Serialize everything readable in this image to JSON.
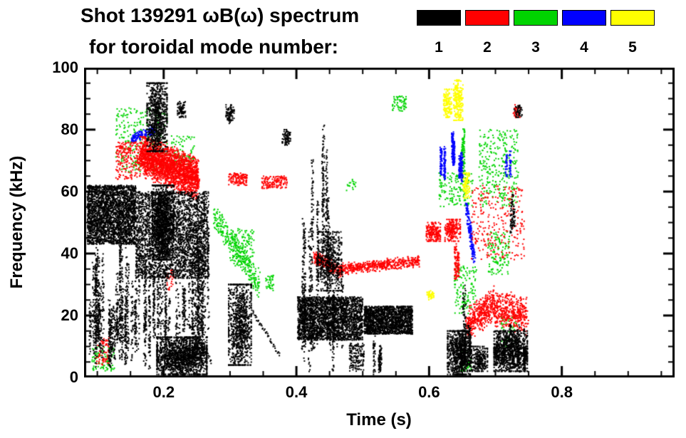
{
  "title": {
    "line1": "Shot 139291 ωB(ω) spectrum",
    "line2": "for toroidal mode number:"
  },
  "legend": {
    "items": [
      {
        "label": "1",
        "color": "#000000"
      },
      {
        "label": "2",
        "color": "#ff0000"
      },
      {
        "label": "3",
        "color": "#00d400"
      },
      {
        "label": "4",
        "color": "#0000ff"
      },
      {
        "label": "5",
        "color": "#ffff00"
      }
    ]
  },
  "chart_data": {
    "type": "scatter",
    "title": "Shot 139291 ωB(ω) spectrum for toroidal mode number",
    "xlabel": "Time (s)",
    "ylabel": "Frequency (kHz)",
    "xlim": [
      0.08,
      0.97
    ],
    "ylim": [
      0,
      100
    ],
    "xticks": [
      0.2,
      0.4,
      0.6,
      0.8
    ],
    "xtick_labels": [
      "0.2",
      "0.4",
      "0.6",
      "0.8"
    ],
    "yticks": [
      0,
      20,
      40,
      60,
      80,
      100
    ],
    "ytick_labels": [
      "0",
      "20",
      "40",
      "60",
      "80",
      "100"
    ],
    "x_minor_step": 0.05,
    "y_minor_step": 5,
    "grid": false,
    "legend_position": "top",
    "point_units": {
      "t": "seconds",
      "f": "kHz"
    },
    "series": [
      {
        "name": "n=1",
        "color": "#000000",
        "clusters": [
          {
            "kind": "rect",
            "t": [
              0.085,
              0.158
            ],
            "f": [
              43,
              62
            ],
            "n": 2600
          },
          {
            "kind": "vstreaks",
            "t": [
              0.086,
              0.158
            ],
            "f": [
              3,
              45
            ],
            "k": 30,
            "n": 1300
          },
          {
            "kind": "rect",
            "t": [
              0.158,
              0.268
            ],
            "f": [
              32,
              60
            ],
            "n": 2600
          },
          {
            "kind": "vstreaks",
            "t": [
              0.158,
              0.268
            ],
            "f": [
              2,
              58
            ],
            "k": 38,
            "n": 1700
          },
          {
            "kind": "blob",
            "t": [
              0.183,
              0.215
            ],
            "f": [
              38,
              62
            ],
            "n": 1200
          },
          {
            "kind": "blob",
            "t": [
              0.19,
              0.265
            ],
            "f": [
              1,
              13
            ],
            "n": 1500
          },
          {
            "kind": "blob",
            "t": [
              0.175,
              0.205
            ],
            "f": [
              73,
              95
            ],
            "n": 800
          },
          {
            "kind": "blob",
            "t": [
              0.221,
              0.233
            ],
            "f": [
              84,
              89
            ],
            "n": 90
          },
          {
            "kind": "blob",
            "t": [
              0.294,
              0.306
            ],
            "f": [
              82,
              88
            ],
            "n": 90
          },
          {
            "kind": "blob",
            "t": [
              0.379,
              0.391
            ],
            "f": [
              75,
              80
            ],
            "n": 80
          },
          {
            "kind": "trace",
            "t0": 0.228,
            "f0": 21,
            "t1": 0.272,
            "f1": 5,
            "n": 55
          },
          {
            "kind": "blob",
            "t": [
              0.298,
              0.332
            ],
            "f": [
              4,
              30
            ],
            "n": 950
          },
          {
            "kind": "trace",
            "t0": 0.332,
            "f0": 22,
            "t1": 0.375,
            "f1": 7,
            "n": 45
          },
          {
            "kind": "rect",
            "t": [
              0.402,
              0.5
            ],
            "f": [
              12,
              26
            ],
            "n": 2400
          },
          {
            "kind": "rect",
            "t": [
              0.502,
              0.575
            ],
            "f": [
              14,
              23
            ],
            "n": 1700
          },
          {
            "kind": "vstreaks",
            "t": [
              0.404,
              0.47
            ],
            "f": [
              0,
              52
            ],
            "k": 16,
            "n": 750
          },
          {
            "kind": "vstreaks",
            "t": [
              0.423,
              0.458
            ],
            "f": [
              30,
              82
            ],
            "k": 6,
            "n": 330
          },
          {
            "kind": "blob",
            "t": [
              0.433,
              0.468
            ],
            "f": [
              28,
              47
            ],
            "n": 520
          },
          {
            "kind": "vstreaks",
            "t": [
              0.515,
              0.528
            ],
            "f": [
              0,
              16
            ],
            "k": 3,
            "n": 130
          },
          {
            "kind": "rect",
            "t": [
              0.48,
              0.502
            ],
            "f": [
              2,
              11
            ],
            "n": 160
          },
          {
            "kind": "blob",
            "t": [
              0.628,
              0.662
            ],
            "f": [
              1,
              15
            ],
            "n": 800
          },
          {
            "kind": "vstreaks",
            "t": [
              0.646,
              0.664
            ],
            "f": [
              1,
              30
            ],
            "k": 6,
            "n": 260
          },
          {
            "kind": "blob",
            "t": [
              0.664,
              0.688
            ],
            "f": [
              2,
              10
            ],
            "n": 260
          },
          {
            "kind": "blob",
            "t": [
              0.698,
              0.748
            ],
            "f": [
              2,
              15
            ],
            "n": 950
          },
          {
            "kind": "vstreaks",
            "t": [
              0.7,
              0.745
            ],
            "f": [
              1,
              18
            ],
            "k": 9,
            "n": 320
          },
          {
            "kind": "blob",
            "t": [
              0.728,
              0.74
            ],
            "f": [
              84,
              88
            ],
            "n": 45
          },
          {
            "kind": "vstreaks",
            "t": [
              0.72,
              0.742
            ],
            "f": [
              45,
              62
            ],
            "k": 3,
            "n": 80
          }
        ]
      },
      {
        "name": "n=2",
        "color": "#ff0000",
        "clusters": [
          {
            "kind": "rect",
            "t": [
              0.098,
              0.118
            ],
            "f": [
              4,
              13
            ],
            "n": 70
          },
          {
            "kind": "rect",
            "t": [
              0.128,
              0.165
            ],
            "f": [
              64,
              76
            ],
            "n": 220
          },
          {
            "kind": "band",
            "t0": 0.165,
            "f0": 72,
            "t1": 0.252,
            "f1": 64,
            "w": 9,
            "n": 2300
          },
          {
            "kind": "rect",
            "t": [
              0.205,
              0.216
            ],
            "f": [
              28,
              35
            ],
            "n": 30
          },
          {
            "kind": "rect",
            "t": [
              0.298,
              0.326
            ],
            "f": [
              62,
              66
            ],
            "n": 130
          },
          {
            "kind": "rect",
            "t": [
              0.348,
              0.386
            ],
            "f": [
              61,
              65
            ],
            "n": 140
          },
          {
            "kind": "band",
            "t0": 0.425,
            "f0": 39,
            "t1": 0.468,
            "f1": 34,
            "w": 3,
            "n": 260
          },
          {
            "kind": "band",
            "t0": 0.468,
            "f0": 35,
            "t1": 0.585,
            "f1": 37.5,
            "w": 2.5,
            "n": 500
          },
          {
            "kind": "blob",
            "t": [
              0.596,
              0.617
            ],
            "f": [
              44,
              50
            ],
            "n": 200
          },
          {
            "kind": "blob",
            "t": [
              0.624,
              0.647
            ],
            "f": [
              44,
              51
            ],
            "n": 220
          },
          {
            "kind": "vstreaks",
            "t": [
              0.636,
              0.644
            ],
            "f": [
              28,
              50
            ],
            "k": 2,
            "n": 110
          },
          {
            "kind": "band",
            "t0": 0.657,
            "f0": 17,
            "t1": 0.7,
            "f1": 24,
            "w": 7,
            "n": 450
          },
          {
            "kind": "band",
            "t0": 0.7,
            "f0": 22,
            "t1": 0.748,
            "f1": 20,
            "w": 8,
            "n": 420
          },
          {
            "kind": "rect",
            "t": [
              0.664,
              0.744
            ],
            "f": [
              38,
              62
            ],
            "n": 260
          },
          {
            "kind": "blob",
            "t": [
              0.727,
              0.737
            ],
            "f": [
              84,
              88
            ],
            "n": 45
          }
        ]
      },
      {
        "name": "n=3",
        "color": "#00d400",
        "clusters": [
          {
            "kind": "rect",
            "t": [
              0.092,
              0.126
            ],
            "f": [
              2,
              10
            ],
            "n": 90
          },
          {
            "kind": "rect",
            "t": [
              0.128,
              0.206
            ],
            "f": [
              66,
              87
            ],
            "n": 260
          },
          {
            "kind": "rect",
            "t": [
              0.21,
              0.246
            ],
            "f": [
              68,
              78
            ],
            "n": 90
          },
          {
            "kind": "band",
            "t0": 0.276,
            "f0": 52,
            "t1": 0.345,
            "f1": 30,
            "w": 6,
            "n": 300
          },
          {
            "kind": "rect",
            "t": [
              0.3,
              0.336
            ],
            "f": [
              36,
              48
            ],
            "n": 150
          },
          {
            "kind": "rect",
            "t": [
              0.354,
              0.366
            ],
            "f": [
              28,
              33
            ],
            "n": 40
          },
          {
            "kind": "rect",
            "t": [
              0.545,
              0.566
            ],
            "f": [
              86,
              91
            ],
            "n": 60
          },
          {
            "kind": "rect",
            "t": [
              0.474,
              0.49
            ],
            "f": [
              60,
              64
            ],
            "n": 18
          },
          {
            "kind": "rect",
            "t": [
              0.615,
              0.666
            ],
            "f": [
              55,
              66
            ],
            "n": 160
          },
          {
            "kind": "vstreaks",
            "t": [
              0.65,
              0.662
            ],
            "f": [
              62,
              82
            ],
            "k": 2,
            "n": 90
          },
          {
            "kind": "rect",
            "t": [
              0.638,
              0.672
            ],
            "f": [
              20,
              36
            ],
            "n": 130
          },
          {
            "kind": "rect",
            "t": [
              0.675,
              0.735
            ],
            "f": [
              55,
              80
            ],
            "n": 300
          },
          {
            "kind": "rect",
            "t": [
              0.688,
              0.722
            ],
            "f": [
              33,
              47
            ],
            "n": 130
          },
          {
            "kind": "rect",
            "t": [
              0.646,
              0.664
            ],
            "f": [
              2,
              9
            ],
            "n": 60
          },
          {
            "kind": "rect",
            "t": [
              0.708,
              0.732
            ],
            "f": [
              10,
              20
            ],
            "n": 50
          }
        ]
      },
      {
        "name": "n=4",
        "color": "#0000ff",
        "clusters": [
          {
            "kind": "band",
            "t0": 0.152,
            "f0": 77,
            "t1": 0.186,
            "f1": 80,
            "w": 2,
            "n": 140
          },
          {
            "kind": "vstreaks",
            "t": [
              0.617,
              0.629
            ],
            "f": [
              62,
              79
            ],
            "k": 2,
            "n": 140
          },
          {
            "kind": "vstreaks",
            "t": [
              0.631,
              0.643
            ],
            "f": [
              67,
              86
            ],
            "k": 2,
            "n": 170
          },
          {
            "kind": "vstreaks",
            "t": [
              0.645,
              0.656
            ],
            "f": [
              60,
              78
            ],
            "k": 2,
            "n": 120
          },
          {
            "kind": "band",
            "t0": 0.656,
            "f0": 56,
            "t1": 0.668,
            "f1": 38,
            "w": 3,
            "n": 160
          },
          {
            "kind": "vstreaks",
            "t": [
              0.714,
              0.726
            ],
            "f": [
              64,
              74
            ],
            "k": 2,
            "n": 60
          }
        ]
      },
      {
        "name": "n=5",
        "color": "#ffff00",
        "clusters": [
          {
            "kind": "blob",
            "t": [
              0.622,
              0.634
            ],
            "f": [
              84,
              93
            ],
            "n": 150
          },
          {
            "kind": "blob",
            "t": [
              0.637,
              0.651
            ],
            "f": [
              83,
              96
            ],
            "n": 230
          },
          {
            "kind": "blob",
            "t": [
              0.651,
              0.661
            ],
            "f": [
              58,
              66
            ],
            "n": 100
          },
          {
            "kind": "blob",
            "t": [
              0.597,
              0.607
            ],
            "f": [
              25,
              28
            ],
            "n": 45
          }
        ]
      }
    ]
  }
}
